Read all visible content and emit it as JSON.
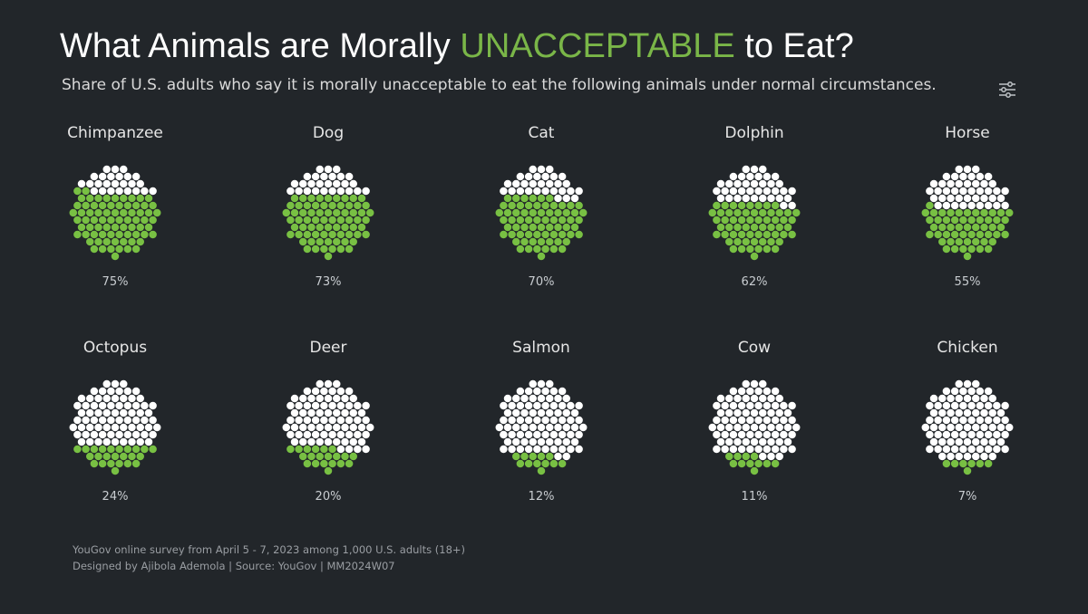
{
  "header": {
    "title_prefix": "What Animals are Morally ",
    "title_accent": "UNACCEPTABLE",
    "title_suffix": " to Eat?",
    "subtitle": "Share of U.S. adults who say it is morally unacceptable to eat the following animals under normal circumstances.",
    "settings_icon": "sliders-icon"
  },
  "colors": {
    "background": "#22262a",
    "accent": "#7ab648",
    "dot_filled": "#78c043",
    "dot_empty": "#ffffff"
  },
  "chart_data": {
    "type": "waffle-circle",
    "categories": [
      "Chimpanzee",
      "Dog",
      "Cat",
      "Dolphin",
      "Horse",
      "Octopus",
      "Deer",
      "Salmon",
      "Cow",
      "Chicken"
    ],
    "values": [
      75,
      73,
      70,
      62,
      55,
      24,
      20,
      12,
      11,
      7
    ],
    "value_labels": [
      "75%",
      "73%",
      "70%",
      "62%",
      "55%",
      "24%",
      "20%",
      "12%",
      "11%",
      "7%"
    ],
    "dots_per_circle": 100,
    "layout": "2 rows x 5 columns"
  },
  "footer": {
    "line1": "YouGov online survey from April 5 - 7, 2023 among 1,000 U.S. adults (18+)",
    "line2": "Designed by Ajibola Ademola | Source: YouGov | MM2024W07"
  }
}
